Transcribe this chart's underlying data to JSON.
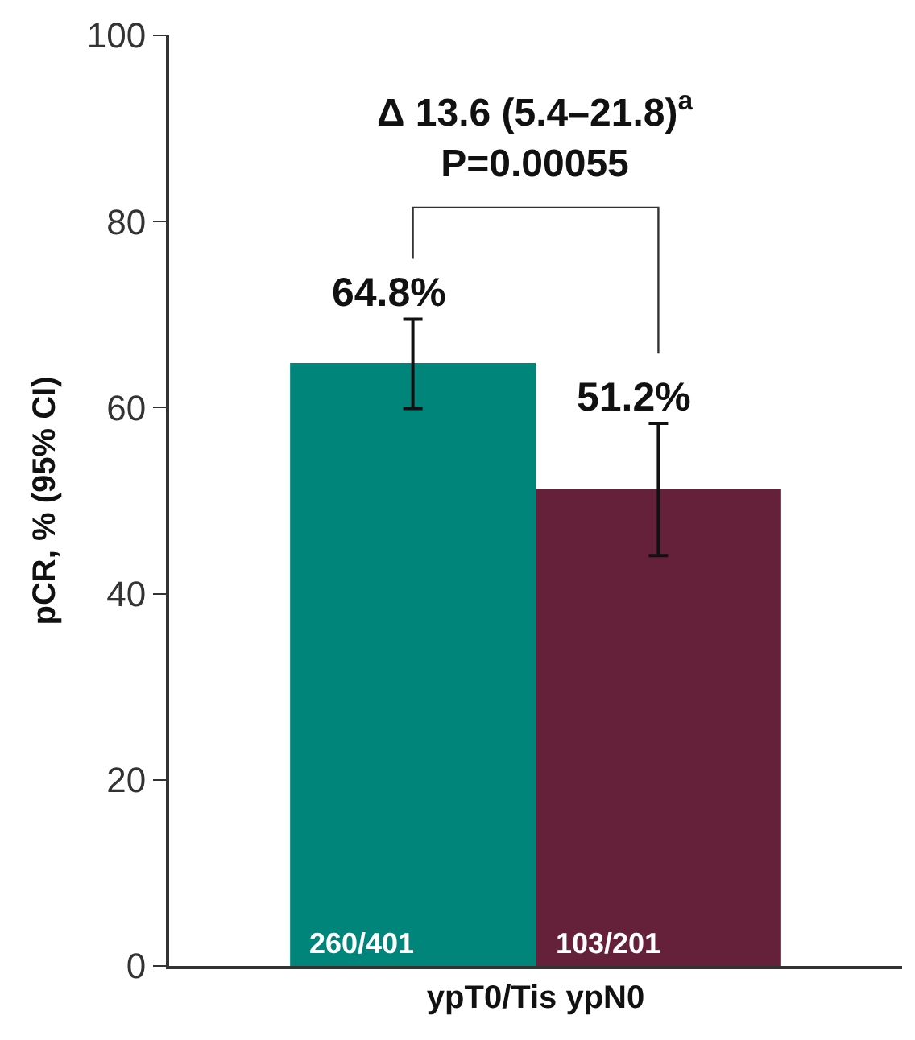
{
  "chart_data": {
    "type": "bar",
    "ylabel": "pCR, % (95% CI)",
    "categories": [
      "ypT0/Tis ypN0"
    ],
    "series": [
      {
        "color": "#00857a",
        "values": [
          64.8
        ],
        "errors": [
          [
            59.9,
            69.5
          ]
        ],
        "value_labels": [
          "64.8%"
        ]
      },
      {
        "color": "#65203a",
        "values": [
          51.2
        ],
        "errors": [
          [
            44.1,
            58.3
          ]
        ],
        "value_labels": [
          "51.2%"
        ]
      }
    ],
    "annotations": [
      "Δ 13.6 (5.4–21.8)$^{a}$\nP=0.00055",
      "260/401",
      "103/201"
    ],
    "ylim": [
      0,
      100
    ],
    "yticks": [
      0,
      20,
      40,
      60,
      80,
      100
    ]
  }
}
